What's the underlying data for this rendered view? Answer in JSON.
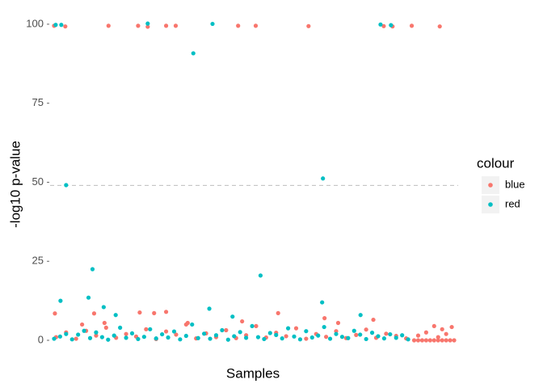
{
  "chart_data": {
    "type": "scatter",
    "x_label": "Samples",
    "y_label": "-log10 p-value",
    "legend_title": "colour",
    "legend_position": "right",
    "xlim": [
      -10,
      1010
    ],
    "ylim": [
      -2.3,
      105.1
    ],
    "yticks": [
      0,
      25,
      50,
      75,
      100
    ],
    "hline": 49,
    "series": [
      {
        "name": "blue",
        "color": "#F8766D",
        "x": [
          0,
          28,
          136,
          210,
          234,
          280,
          304,
          460,
          504,
          636,
          824,
          846,
          894,
          964,
          2,
          100,
          214,
          250,
          280,
          560,
          126,
          70,
          334,
          470,
          676,
          798,
          710,
          950,
          994,
          970,
          930,
          910,
          960,
          980,
          5,
          30,
          55,
          80,
          105,
          130,
          155,
          180,
          205,
          230,
          255,
          280,
          305,
          330,
          355,
          380,
          405,
          430,
          455,
          480,
          505,
          530,
          555,
          580,
          605,
          630,
          655,
          680,
          705,
          730,
          755,
          780,
          805,
          830,
          855,
          880,
          900,
          910,
          920,
          930,
          940,
          950,
          960,
          970,
          980,
          990,
          1000
        ],
        "values": [
          99.5,
          99.3,
          99.5,
          99.5,
          99.2,
          99.5,
          99.5,
          99.5,
          99.5,
          99.4,
          99.4,
          99.3,
          99.5,
          99.3,
          8.5,
          8.5,
          8.8,
          8.6,
          9.0,
          8.6,
          5.5,
          5,
          5.5,
          6,
          7,
          6.5,
          5.5,
          4.5,
          4.2,
          3.5,
          2.5,
          1.5,
          1,
          2,
          1,
          2.5,
          0.5,
          3,
          1.5,
          4,
          0.8,
          2,
          1.2,
          3.5,
          0.4,
          2.8,
          1.8,
          5,
          0.6,
          2.2,
          1,
          3.2,
          0.7,
          1.6,
          4.5,
          0.9,
          2.4,
          1.3,
          3.8,
          0.5,
          2,
          1.1,
          2.9,
          0.7,
          1.7,
          3.4,
          0.8,
          2.1,
          1.4,
          0.6,
          0,
          0,
          0,
          0,
          0,
          0,
          0,
          0,
          0,
          0,
          0
        ]
      },
      {
        "name": "red",
        "color": "#00BFC4",
        "x": [
          4,
          18,
          234,
          396,
          816,
          842,
          348,
          30,
          672,
          96,
          516,
          86,
          16,
          670,
          388,
          124,
          154,
          446,
          766,
          0,
          15,
          30,
          45,
          60,
          75,
          90,
          105,
          120,
          135,
          150,
          165,
          180,
          195,
          210,
          225,
          240,
          255,
          270,
          285,
          300,
          315,
          330,
          345,
          360,
          375,
          390,
          405,
          420,
          435,
          450,
          465,
          480,
          495,
          510,
          525,
          540,
          555,
          570,
          585,
          600,
          615,
          630,
          645,
          660,
          675,
          690,
          705,
          720,
          735,
          750,
          765,
          780,
          795,
          810,
          825,
          840,
          855,
          870,
          885
        ],
        "values": [
          99.8,
          99.8,
          100.2,
          100.1,
          99.9,
          99.7,
          90.8,
          49.1,
          51.2,
          22.5,
          20.5,
          13.5,
          12.5,
          12,
          10,
          10.5,
          8,
          7.5,
          8,
          0.5,
          1.2,
          2,
          0.3,
          1.8,
          3,
          0.7,
          2.5,
          1,
          0.2,
          1.5,
          4,
          0.8,
          2.2,
          0.4,
          1.1,
          3.5,
          0.6,
          1.9,
          0.9,
          2.8,
          0.3,
          1.4,
          5,
          0.7,
          2.1,
          0.5,
          1.6,
          3.2,
          0.2,
          1.3,
          2.6,
          0.8,
          4.5,
          1,
          0.4,
          2.3,
          1.7,
          0.6,
          3.8,
          1.2,
          0.3,
          2.9,
          0.9,
          1.5,
          4.2,
          0.5,
          2,
          1.1,
          0.7,
          3,
          1.8,
          0.4,
          2.4,
          1.3,
          0.6,
          1.9,
          0.8,
          1.6,
          0.3
        ]
      }
    ]
  }
}
